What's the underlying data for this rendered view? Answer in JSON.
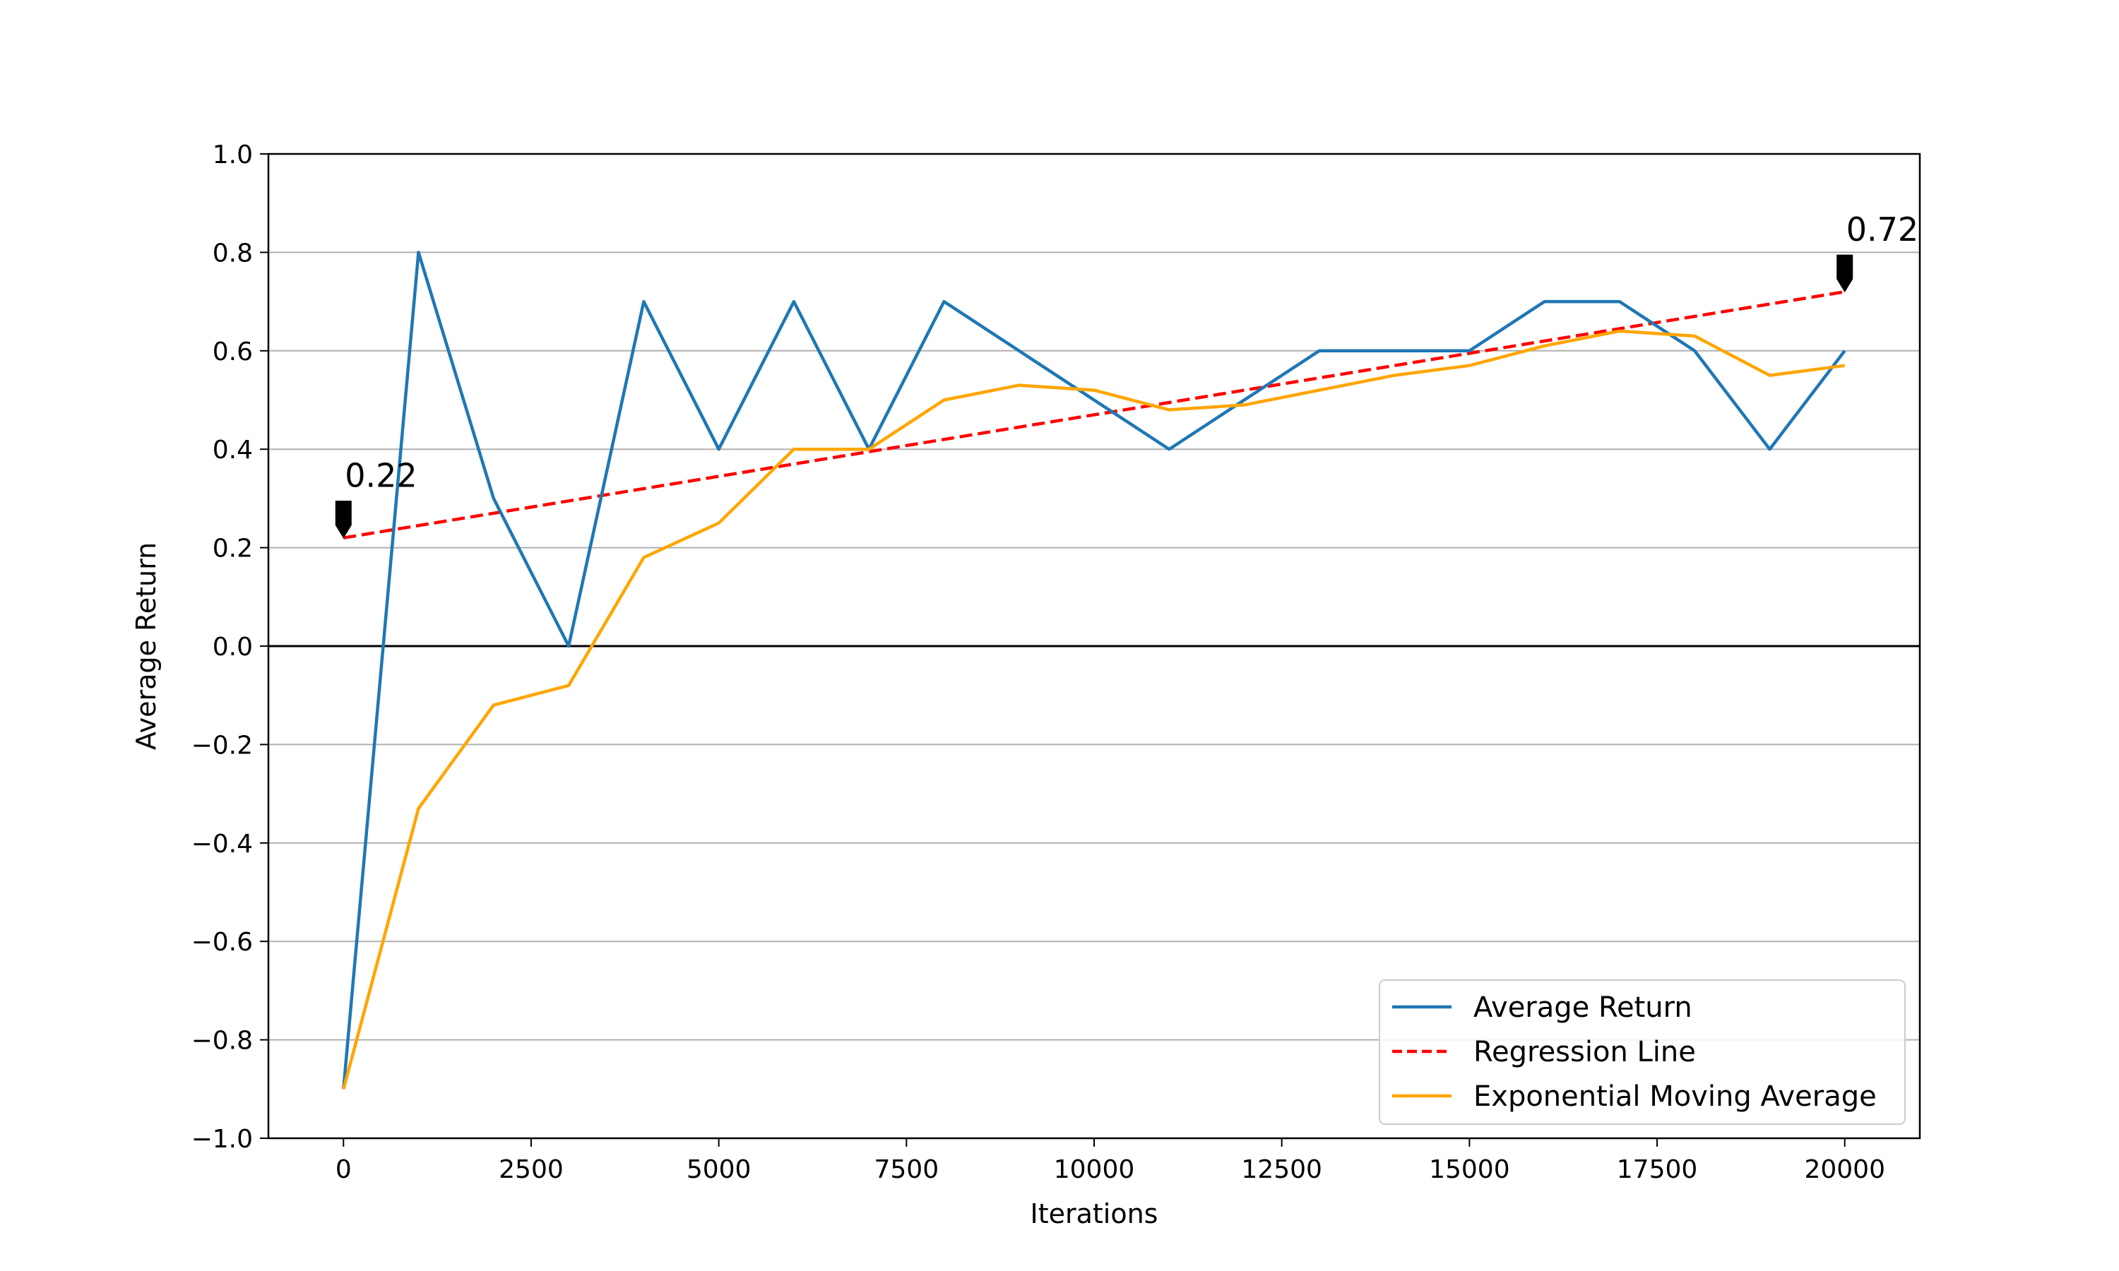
{
  "chart_data": {
    "type": "line",
    "xlabel": "Iterations",
    "ylabel": "Average Return",
    "xlim": [
      -1000,
      21000
    ],
    "ylim": [
      -1.0,
      1.0
    ],
    "xticks": [
      0,
      2500,
      5000,
      7500,
      10000,
      12500,
      15000,
      17500,
      20000
    ],
    "yticks": [
      -1.0,
      -0.8,
      -0.6,
      -0.4,
      -0.2,
      0.0,
      0.2,
      0.4,
      0.6,
      0.8,
      1.0
    ],
    "xtick_labels": [
      "0",
      "2500",
      "5000",
      "7500",
      "10000",
      "12500",
      "15000",
      "17500",
      "20000"
    ],
    "ytick_labels": [
      "−1.0",
      "−0.8",
      "−0.6",
      "−0.4",
      "−0.2",
      "0.0",
      "0.2",
      "0.4",
      "0.6",
      "0.8",
      "1.0"
    ],
    "grid": "horizontal",
    "zero_line": true,
    "legend_position": "lower-right",
    "x": [
      0,
      1000,
      2000,
      3000,
      4000,
      5000,
      6000,
      7000,
      8000,
      9000,
      10000,
      11000,
      12000,
      13000,
      14000,
      15000,
      16000,
      17000,
      18000,
      19000,
      20000
    ],
    "series": [
      {
        "name": "Average Return",
        "color": "#1f77b4",
        "style": "solid",
        "values": [
          -0.9,
          0.8,
          0.3,
          0.0,
          0.7,
          0.4,
          0.7,
          0.4,
          0.7,
          0.6,
          0.5,
          0.4,
          0.5,
          0.6,
          0.6,
          0.6,
          0.7,
          0.7,
          0.6,
          0.4,
          0.6
        ]
      },
      {
        "name": "Regression Line",
        "color": "#ff0000",
        "style": "dashed",
        "x": [
          0,
          20000
        ],
        "values": [
          0.22,
          0.72
        ]
      },
      {
        "name": "Exponential Moving Average",
        "color": "#ffa500",
        "style": "solid",
        "values": [
          -0.9,
          -0.33,
          -0.12,
          -0.08,
          0.18,
          0.25,
          0.4,
          0.4,
          0.5,
          0.53,
          0.52,
          0.48,
          0.49,
          0.52,
          0.55,
          0.57,
          0.61,
          0.64,
          0.63,
          0.55,
          0.57
        ]
      }
    ],
    "annotations": [
      {
        "text": "0.22",
        "x": 0,
        "y": 0.22,
        "color": "#000000"
      },
      {
        "text": "0.72",
        "x": 20000,
        "y": 0.72,
        "color": "#000000"
      }
    ]
  }
}
